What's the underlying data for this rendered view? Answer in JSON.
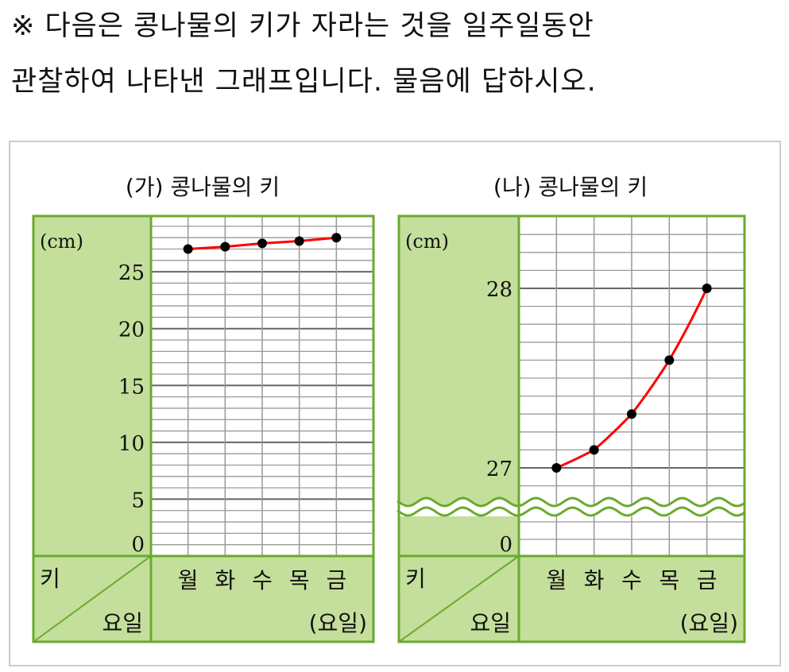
{
  "question": {
    "line1": "※ 다음은 콩나물의 키가 자라는 것을 일주일동안",
    "line2": "관찰하여 나타낸 그래프입니다. 물음에 답하시오."
  },
  "colors": {
    "panel_green": "#c4df9b",
    "border_green": "#6aaa2e",
    "line": "#ff0000",
    "grid": "#999999"
  },
  "chart_data": [
    {
      "type": "line",
      "title": "(가) 콩나물의 키",
      "ylabel": "(cm)",
      "corner_top": "키",
      "corner_bottom": "요일",
      "xlabel": "(요일)",
      "categories": [
        "월",
        "화",
        "수",
        "목",
        "금"
      ],
      "values": [
        27,
        27.2,
        27.5,
        27.7,
        28
      ],
      "yticks": [
        "0",
        "5",
        "10",
        "15",
        "20",
        "25"
      ],
      "ylim": [
        0,
        29.9
      ],
      "minor_step": 1,
      "major_step": 5,
      "grid": true
    },
    {
      "type": "line",
      "title": "(나) 콩나물의 키",
      "ylabel": "(cm)",
      "corner_top": "키",
      "corner_bottom": "요일",
      "xlabel": "(요일)",
      "categories": [
        "월",
        "화",
        "수",
        "목",
        "금"
      ],
      "values": [
        27,
        27.1,
        27.3,
        27.6,
        28
      ],
      "yticks": [
        "0",
        "27",
        "28"
      ],
      "ylim": [
        26.8,
        28.4
      ],
      "axis_break": true,
      "minor_step": 0.1,
      "major_step": 1,
      "grid": true
    }
  ]
}
